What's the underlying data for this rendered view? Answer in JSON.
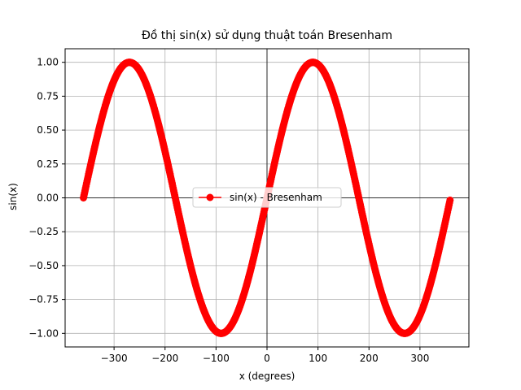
{
  "chart_data": {
    "type": "scatter",
    "title": "Đồ thị sin(x) sử dụng thuật toán Bresenham",
    "xlabel": "x (degrees)",
    "ylabel": "sin(x)",
    "xlim": [
      -396,
      396
    ],
    "ylim": [
      -1.1,
      1.1
    ],
    "xticks": [
      -300,
      -200,
      -100,
      0,
      100,
      200,
      300
    ],
    "xtick_labels": [
      "−300",
      "−200",
      "−100",
      "0",
      "100",
      "200",
      "300"
    ],
    "yticks": [
      -1.0,
      -0.75,
      -0.5,
      -0.25,
      0.0,
      0.25,
      0.5,
      0.75,
      1.0
    ],
    "ytick_labels": [
      "−1.00",
      "−0.75",
      "−0.50",
      "−0.25",
      "0.00",
      "0.25",
      "0.50",
      "0.75",
      "1.00"
    ],
    "grid": true,
    "reference_lines": {
      "x": 0,
      "y": 0
    },
    "legend": {
      "placement": "center"
    },
    "series": [
      {
        "name": "sin(x) - Bresenham",
        "color": "#ff0000",
        "marker": "circle",
        "function": "sin(x degrees)",
        "x_range": [
          -360,
          359
        ],
        "x_step": 1
      }
    ]
  }
}
